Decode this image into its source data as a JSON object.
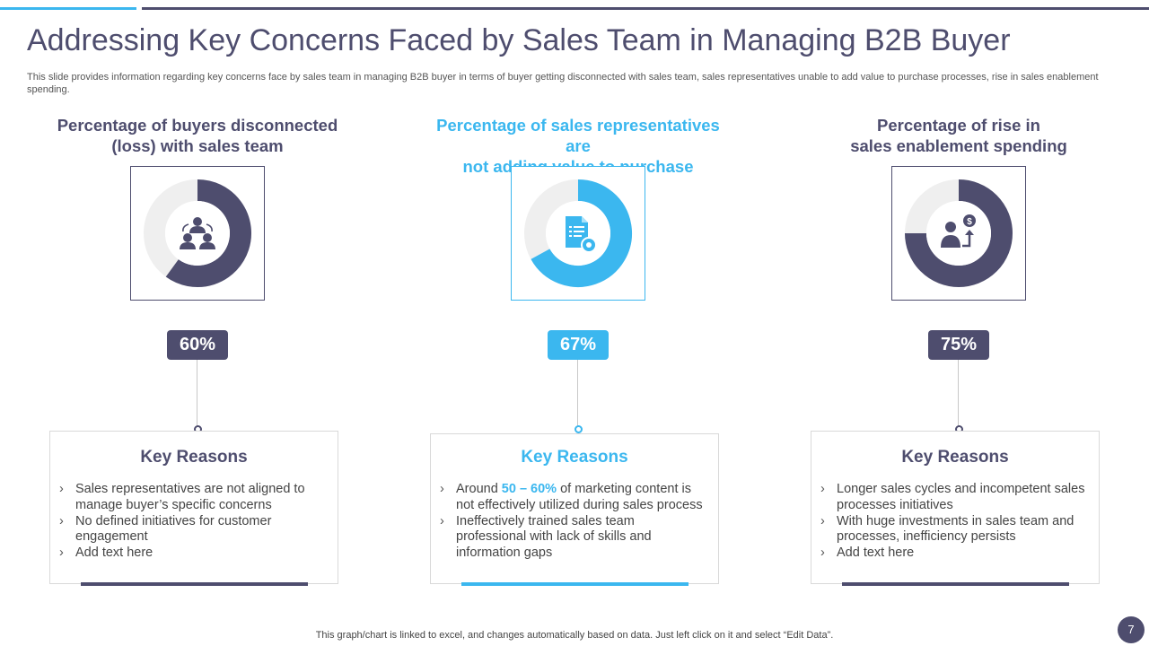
{
  "header": {
    "title": "Addressing Key Concerns Faced by Sales Team in Managing B2B Buyer",
    "subtitle": "This slide provides information regarding key concerns face by sales team in managing B2B buyer in terms of buyer getting disconnected with sales team, sales representatives unable to add value to purchase processes, rise in sales enablement spending."
  },
  "colors": {
    "dark": "#4e4d6e",
    "accent": "#3bb7ef",
    "track": "#efefef"
  },
  "chart_data": [
    {
      "type": "pie",
      "subtype": "donut",
      "title_line1": "Percentage of buyers disconnected",
      "title_line2": "(loss) with sales team",
      "value": 60,
      "label": "60%",
      "color": "#4e4d6e",
      "icon": "people-network-icon"
    },
    {
      "type": "pie",
      "subtype": "donut",
      "title_line1": "Percentage of sales representatives are",
      "title_line2": "not adding value to purchase processes",
      "value": 67,
      "label": "67%",
      "color": "#3bb7ef",
      "icon": "document-gear-icon"
    },
    {
      "type": "pie",
      "subtype": "donut",
      "title_line1": "Percentage of rise in",
      "title_line2": "sales enablement spending",
      "value": 75,
      "label": "75%",
      "color": "#4e4d6e",
      "icon": "person-dollar-growth-icon"
    }
  ],
  "reasons": [
    {
      "title": "Key Reasons",
      "items": [
        {
          "text": "Sales representatives are not aligned to manage buyer’s specific concerns"
        },
        {
          "text": "No defined initiatives for customer engagement"
        },
        {
          "text": "Add text here"
        }
      ]
    },
    {
      "title": "Key Reasons",
      "items": [
        {
          "pre": "Around ",
          "highlight": "50 – 60%",
          "post": " of marketing content is not effectively utilized during sales process"
        },
        {
          "text": "Ineffectively trained sales team professional with lack of skills and information gaps"
        }
      ]
    },
    {
      "title": "Key Reasons",
      "items": [
        {
          "text": "Longer sales cycles and incompetent sales processes initiatives"
        },
        {
          "text": "With huge investments in sales team and processes, inefficiency persists"
        },
        {
          "text": "Add text here"
        }
      ]
    }
  ],
  "footer": {
    "note": "This graph/chart is linked to excel,  and changes automatically based on data. Just left click on it and select “Edit Data”.",
    "page_number": "7"
  }
}
